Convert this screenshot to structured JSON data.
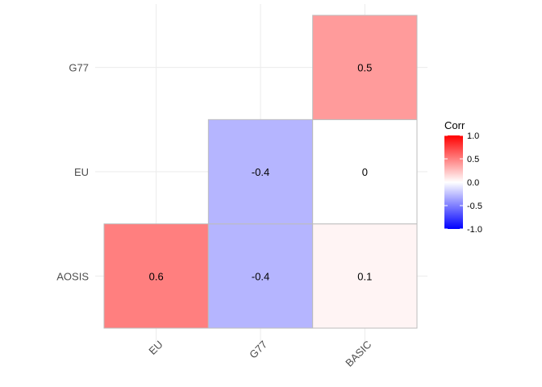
{
  "chart_data": {
    "type": "heatmap",
    "x_categories": [
      "EU",
      "G77",
      "BASIC"
    ],
    "y_categories": [
      "AOSIS",
      "EU",
      "G77"
    ],
    "cells": [
      {
        "x": "EU",
        "y": "AOSIS",
        "value": 0.6,
        "label": "0.6"
      },
      {
        "x": "G77",
        "y": "AOSIS",
        "value": -0.4,
        "label": "-0.4"
      },
      {
        "x": "BASIC",
        "y": "AOSIS",
        "value": 0.1,
        "label": "0.1"
      },
      {
        "x": "G77",
        "y": "EU",
        "value": -0.4,
        "label": "-0.4"
      },
      {
        "x": "BASIC",
        "y": "EU",
        "value": 0,
        "label": "0"
      },
      {
        "x": "BASIC",
        "y": "G77",
        "value": 0.5,
        "label": "0.5"
      }
    ],
    "legend": {
      "title": "Corr",
      "range": [
        -1,
        1
      ],
      "ticks": [
        1,
        0.5,
        0,
        -0.5,
        -1
      ],
      "tick_labels": [
        "1.0",
        "0.5",
        "0.0",
        "-0.5",
        "-1.0"
      ],
      "placement": "right",
      "colors": {
        "low": "#0000ff",
        "mid": "#ffffff",
        "high": "#ff0000"
      }
    },
    "grid": true
  }
}
